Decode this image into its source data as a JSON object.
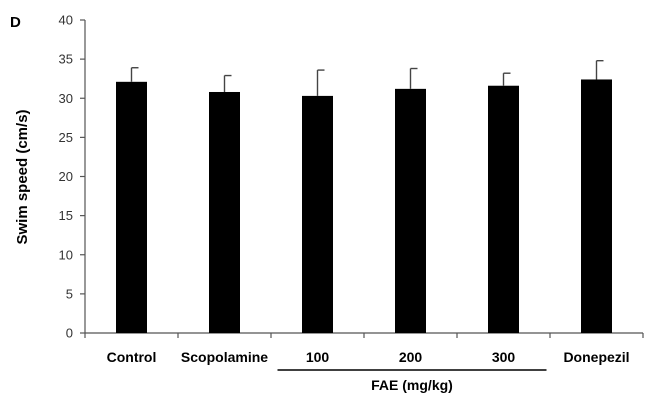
{
  "panel_label": "D",
  "chart_data": {
    "type": "bar",
    "categories": [
      "Control",
      "Scopolamine",
      "100",
      "200",
      "300",
      "Donepezil"
    ],
    "values": [
      32.1,
      30.8,
      30.3,
      31.2,
      31.6,
      32.4
    ],
    "errors": [
      1.8,
      2.1,
      3.3,
      2.6,
      1.6,
      2.4
    ],
    "title": "",
    "xlabel": "",
    "ylabel": "Swim speed (cm/s)",
    "ylim": [
      0,
      40
    ],
    "yticks": [
      0,
      5,
      10,
      15,
      20,
      25,
      30,
      35,
      40
    ],
    "group_label": "FAE (mg/kg)",
    "group_categories": [
      "100",
      "200",
      "300"
    ],
    "bar_color": "#000000",
    "grid": false,
    "legend": "none"
  }
}
